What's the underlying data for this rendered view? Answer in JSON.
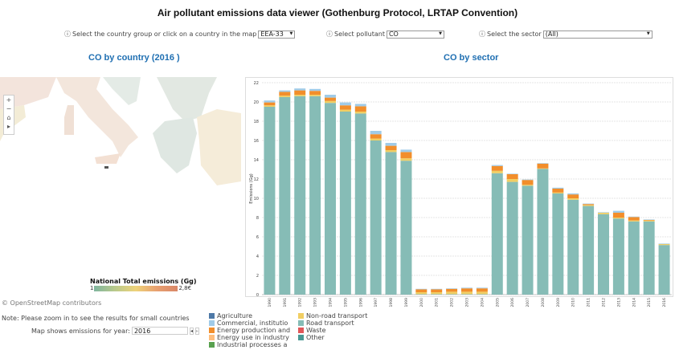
{
  "title": "Air pollutant emissions data viewer (Gothenburg Protocol, LRTAP Convention)",
  "controls": {
    "country_label": "Select the country group or click on a country in the map",
    "country_value": "EEA-33",
    "pollutant_label": "Select pollutant",
    "pollutant_value": "CO",
    "sector_label": "Select the sector",
    "sector_value": "(All)",
    "info_icon": "ⓘ"
  },
  "map": {
    "title": "CO by country (2016 )",
    "legend_title": "National Total emissions (Gg)",
    "legend_min": "1",
    "legend_max": "2,8€",
    "attribution": "© OpenStreetMap contributors",
    "note": "Note: Please zoom in to see the results for small countries",
    "year_label": "Map shows emissions for year:",
    "year_value": "2016",
    "zoom_in": "+",
    "zoom_out": "−",
    "home": "⌂",
    "play": "▸",
    "prev": "◂",
    "next": "▸"
  },
  "legend": [
    {
      "label": "Agriculture",
      "color": "#4e79a7"
    },
    {
      "label": "Commercial, institutio",
      "color": "#a0cbe8"
    },
    {
      "label": "Energy production and",
      "color": "#f28e2b"
    },
    {
      "label": "Energy use in industry",
      "color": "#ffbe7d"
    },
    {
      "label": "Industrial processes a",
      "color": "#59a14f"
    },
    {
      "label": "Non-road transport",
      "color": "#f1ce63"
    },
    {
      "label": "Road transport",
      "color": "#86bcb6"
    },
    {
      "label": "Waste",
      "color": "#e15759"
    },
    {
      "label": "Other",
      "color": "#499894"
    }
  ],
  "chart_data": {
    "type": "bar",
    "stacked": true,
    "title": "CO by sector",
    "ylabel": "Emissions (Gg)",
    "xlabel": "",
    "ylim": [
      0,
      22
    ],
    "yticks": [
      0,
      2,
      4,
      6,
      8,
      10,
      12,
      14,
      16,
      18,
      20,
      22
    ],
    "grid": true,
    "categories": [
      "1990",
      "1991",
      "1992",
      "1993",
      "1994",
      "1995",
      "1996",
      "1997",
      "1998",
      "1999",
      "2000",
      "2001",
      "2002",
      "2003",
      "2004",
      "2005",
      "2006",
      "2007",
      "2008",
      "2009",
      "2010",
      "2011",
      "2012",
      "2013",
      "2014",
      "2015",
      "2016"
    ],
    "series": [
      {
        "name": "Road transport",
        "color": "#86bcb6",
        "values": [
          19.5,
          20.5,
          20.6,
          20.6,
          19.9,
          19.0,
          18.8,
          16.0,
          14.8,
          13.9,
          0.05,
          0.05,
          0.05,
          0.05,
          0.05,
          12.6,
          11.7,
          11.3,
          13.05,
          10.5,
          9.85,
          9.2,
          8.35,
          7.9,
          7.6,
          7.6,
          5.15
        ]
      },
      {
        "name": "Non-road transport",
        "color": "#f1ce63",
        "values": [
          0.15,
          0.15,
          0.15,
          0.15,
          0.2,
          0.2,
          0.2,
          0.2,
          0.2,
          0.25,
          0.2,
          0.2,
          0.25,
          0.25,
          0.25,
          0.25,
          0.3,
          0.1,
          0.05,
          0.1,
          0.15,
          0.1,
          0.15,
          0.1,
          0.1,
          0.1,
          0.1
        ]
      },
      {
        "name": "Energy production and",
        "color": "#f28e2b",
        "values": [
          0.3,
          0.4,
          0.45,
          0.4,
          0.35,
          0.45,
          0.55,
          0.45,
          0.45,
          0.65,
          0.3,
          0.3,
          0.3,
          0.35,
          0.35,
          0.5,
          0.5,
          0.5,
          0.5,
          0.4,
          0.4,
          0.1,
          0,
          0.5,
          0.35,
          0.05,
          0
        ]
      },
      {
        "name": "Commercial, institutio",
        "color": "#a0cbe8",
        "values": [
          0.2,
          0.15,
          0.2,
          0.2,
          0.3,
          0.3,
          0.25,
          0.35,
          0.3,
          0.25,
          0.05,
          0.05,
          0.05,
          0.07,
          0.07,
          0.1,
          0.05,
          0.05,
          0.05,
          0.1,
          0.1,
          0.05,
          0.05,
          0.2,
          0.05,
          0.05,
          0.05
        ]
      }
    ]
  }
}
